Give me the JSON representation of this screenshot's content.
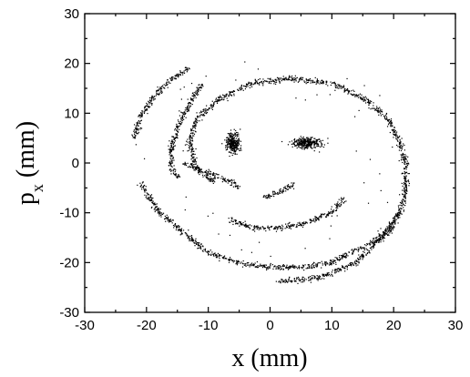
{
  "chart_data": {
    "type": "scatter",
    "title": "",
    "xlabel": "x (mm)",
    "ylabel_main": "p",
    "ylabel_sub": "x",
    "ylabel_unit": " (mm)",
    "xlim": [
      -30,
      30
    ],
    "ylim": [
      -30,
      30
    ],
    "xticks": [
      -30,
      -20,
      -10,
      0,
      10,
      20,
      30
    ],
    "yticks": [
      -30,
      -20,
      -10,
      0,
      10,
      20,
      30
    ],
    "xtick_labels": [
      "-30",
      "-20",
      "-10",
      "0",
      "10",
      "20",
      "30"
    ],
    "ytick_labels": [
      "-30",
      "-20",
      "-10",
      "0",
      "10",
      "20",
      "30"
    ],
    "grid": false,
    "marker_color": "#000000",
    "structures": [
      {
        "name": "outer spiral arm",
        "points": [
          [
            -13,
            19
          ],
          [
            -16,
            17
          ],
          [
            -19,
            13
          ],
          [
            -21,
            9
          ],
          [
            -22,
            5
          ]
        ]
      },
      {
        "name": "inner spiral arm left",
        "points": [
          [
            -15,
            -3
          ],
          [
            -16,
            -1
          ],
          [
            -16,
            3
          ],
          [
            -15,
            7
          ],
          [
            -13,
            12
          ],
          [
            -11,
            16
          ]
        ]
      },
      {
        "name": "main ring",
        "points": [
          [
            -8,
            13
          ],
          [
            -12,
            9
          ],
          [
            -13,
            4
          ],
          [
            -12,
            -1
          ],
          [
            -9,
            -4
          ]
        ]
      },
      {
        "name": "top arc",
        "points": [
          [
            -8,
            13
          ],
          [
            -3,
            16
          ],
          [
            3,
            17
          ],
          [
            10,
            16
          ],
          [
            15,
            13
          ],
          [
            19,
            9
          ],
          [
            21,
            4
          ],
          [
            22,
            0
          ],
          [
            22,
            -5
          ],
          [
            21,
            -10
          ]
        ]
      },
      {
        "name": "lower right arc",
        "points": [
          [
            21,
            -10
          ],
          [
            19,
            -14
          ],
          [
            15,
            -17
          ],
          [
            10,
            -20
          ],
          [
            5,
            -21
          ],
          [
            0,
            -21
          ],
          [
            -5,
            -20
          ],
          [
            -10,
            -18
          ],
          [
            -14,
            -14
          ],
          [
            -18,
            -10
          ],
          [
            -21,
            -4
          ]
        ]
      },
      {
        "name": "outer right arm",
        "points": [
          [
            21,
            -10
          ],
          [
            18,
            -15
          ],
          [
            14,
            -20
          ],
          [
            8,
            -23
          ],
          [
            1,
            -24
          ]
        ]
      },
      {
        "name": "mouth arc",
        "points": [
          [
            -7,
            -11
          ],
          [
            -3,
            -13
          ],
          [
            2,
            -13
          ],
          [
            6,
            -12
          ],
          [
            10,
            -10
          ],
          [
            12,
            -7
          ]
        ]
      },
      {
        "name": "inner hook",
        "points": [
          [
            -1,
            -7
          ],
          [
            1,
            -6
          ],
          [
            3,
            -5
          ],
          [
            4,
            -4
          ]
        ]
      },
      {
        "name": "left band",
        "points": [
          [
            -14,
            0
          ],
          [
            -12,
            -1
          ],
          [
            -10,
            -2
          ],
          [
            -8,
            -3
          ],
          [
            -6,
            -4
          ],
          [
            -5,
            -5
          ]
        ]
      },
      {
        "name": "left blob",
        "center": [
          -6,
          4
        ],
        "spread": [
          1.3,
          2.4
        ]
      },
      {
        "name": "right blob",
        "center": [
          6,
          4
        ],
        "spread": [
          3.0,
          1.3
        ]
      }
    ]
  }
}
